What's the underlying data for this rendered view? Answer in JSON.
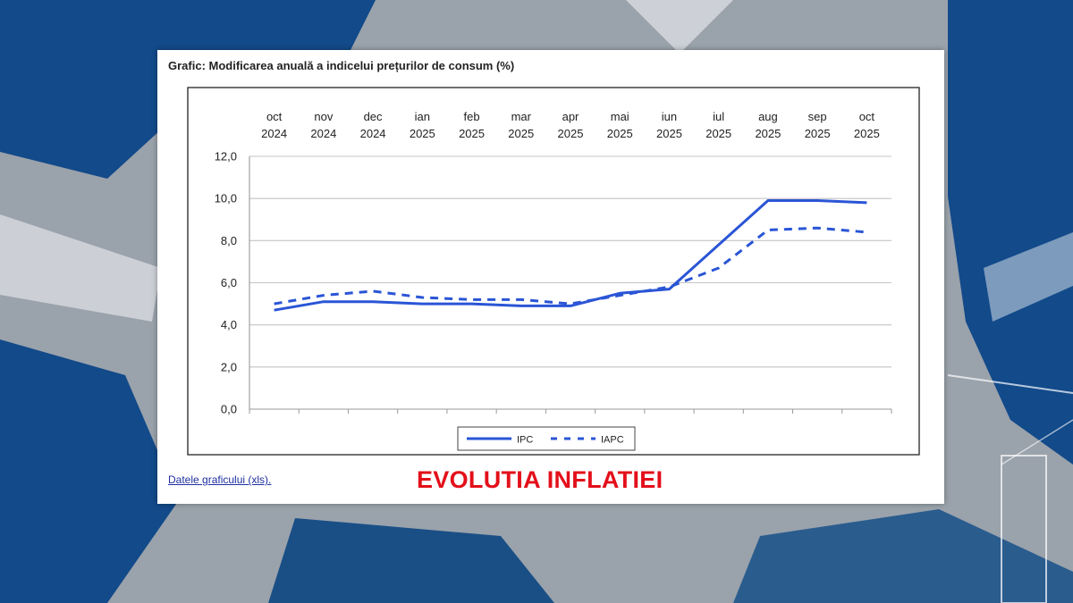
{
  "colors": {
    "background_blue": "#124a8a",
    "background_gray": "#9aa2ab",
    "series_line": "#2a55d6",
    "headline": "#e3101a",
    "link": "#1f2fa0"
  },
  "card": {
    "title": "Grafic: Modificarea anuală a indicelui prețurilor de consum (%)",
    "data_link": "Datele graficului (xls).",
    "headline": "EVOLUTIA INFLATIEI"
  },
  "chart_data": {
    "type": "line",
    "title": "",
    "xlabel": "",
    "ylabel": "",
    "categories": [
      [
        "oct",
        "2024"
      ],
      [
        "nov",
        "2024"
      ],
      [
        "dec",
        "2024"
      ],
      [
        "ian",
        "2025"
      ],
      [
        "feb",
        "2025"
      ],
      [
        "mar",
        "2025"
      ],
      [
        "apr",
        "2025"
      ],
      [
        "mai",
        "2025"
      ],
      [
        "iun",
        "2025"
      ],
      [
        "iul",
        "2025"
      ],
      [
        "aug",
        "2025"
      ],
      [
        "sep",
        "2025"
      ],
      [
        "oct",
        "2025"
      ]
    ],
    "ylim": [
      0,
      12
    ],
    "yticks": [
      "0,0",
      "2,0",
      "4,0",
      "6,0",
      "8,0",
      "10,0",
      "12,0"
    ],
    "grid": "horizontal",
    "x_labels_position": "top",
    "legend_position": "bottom-center",
    "series": [
      {
        "name": "IPC",
        "style": "solid",
        "values": [
          4.7,
          5.1,
          5.1,
          5.0,
          5.0,
          4.9,
          4.9,
          5.5,
          5.7,
          7.8,
          9.9,
          9.9,
          9.8
        ]
      },
      {
        "name": "IAPC",
        "style": "dashed",
        "values": [
          5.0,
          5.4,
          5.6,
          5.3,
          5.2,
          5.2,
          5.0,
          5.4,
          5.8,
          6.7,
          8.5,
          8.6,
          8.4
        ]
      }
    ]
  }
}
